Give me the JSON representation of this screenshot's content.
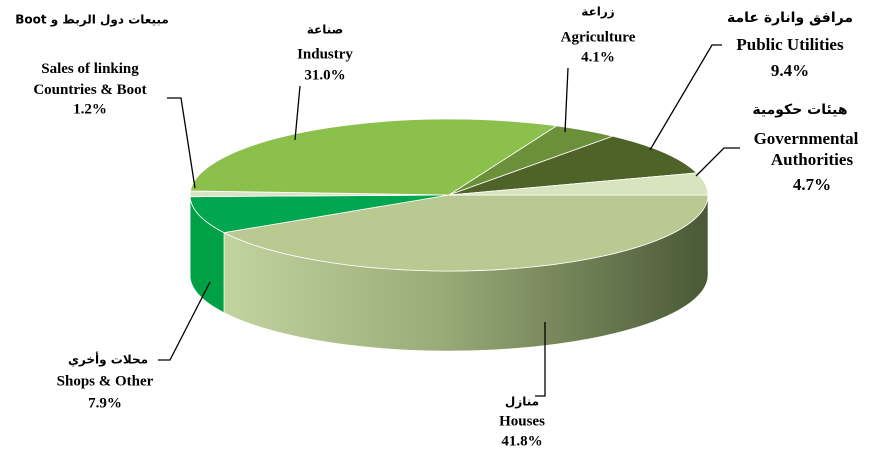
{
  "chart_data": {
    "type": "pie",
    "categories": [
      "Houses",
      "Shops & Other",
      "Sales of linking Countries & Boot",
      "Industry",
      "Agriculture",
      "Public Utilities",
      "Governmental Authorities"
    ],
    "arabic_names": [
      "منازل",
      "محلات وأخري",
      "مبيعات دول الربط و Boot",
      "صناعة",
      "زراعة",
      "مرافق وانارة عامة",
      "هيئات حكومية"
    ],
    "values": [
      41.8,
      7.9,
      1.2,
      31.0,
      4.1,
      9.4,
      4.7
    ],
    "value_labels": [
      "41.8%",
      "7.9%",
      "1.2%",
      "31.0%",
      "4.1%",
      "9.4%",
      "4.7%"
    ],
    "colors": [
      "#b8c992",
      "#00a650",
      "#d9e4c6",
      "#8cc04c",
      "#6c8f3a",
      "#4f6228",
      "#d7e4bd"
    ]
  }
}
